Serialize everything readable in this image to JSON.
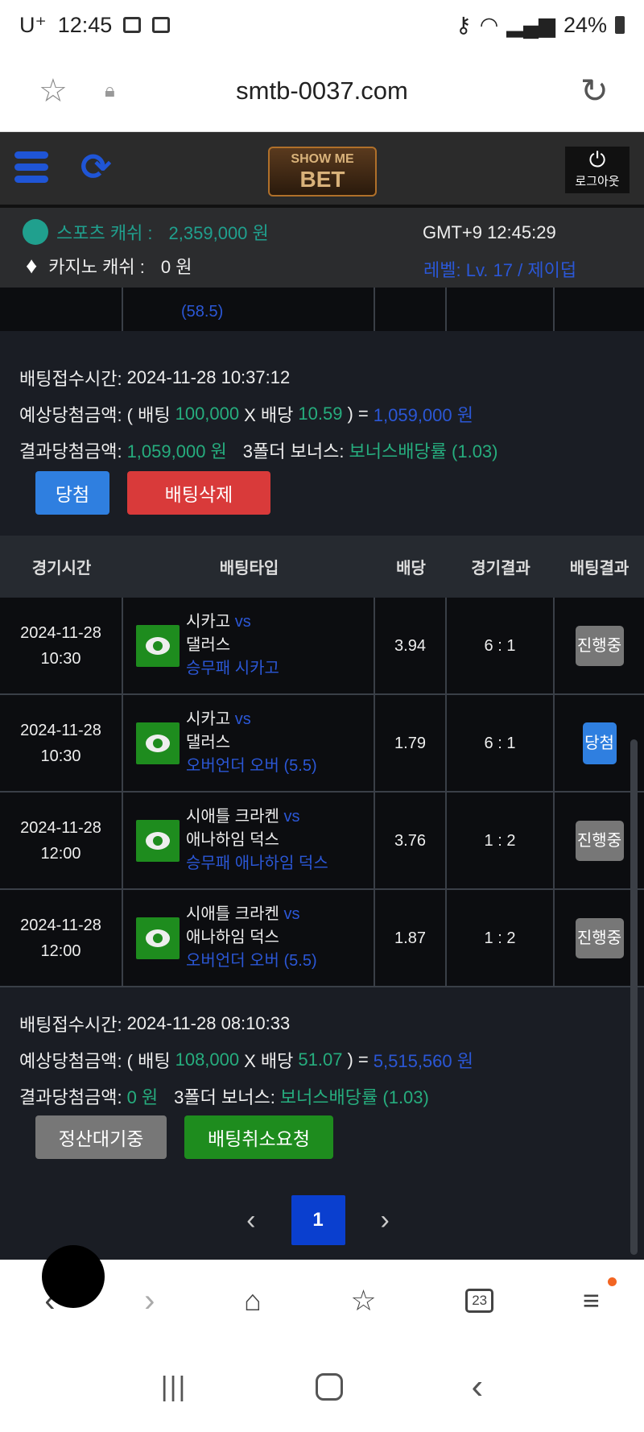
{
  "status_bar": {
    "carrier": "U⁺",
    "time": "12:45",
    "battery": "24%"
  },
  "browser": {
    "url": "smtb-0037.com"
  },
  "header": {
    "logo_text": "SHOW ME THE BET",
    "logout_label": "로그아웃"
  },
  "info": {
    "sports_label": "스포츠 캐쉬 :",
    "sports_value": "2,359,000 원",
    "casino_label": "카지노 캐쉬 :",
    "casino_value": "0 원",
    "clock": "GMT+9 12:45:29",
    "level": "레벨: Lv. 17 / 제이덥"
  },
  "partial_row": {
    "text": "(58.5)"
  },
  "bet1": {
    "time_label": "배팅접수시간:",
    "time": "2024-11-28 10:37:12",
    "exp_label": "예상당첨금액: ( 배팅",
    "stake": "100,000",
    "x_label": "X 배당",
    "odds": "10.59",
    "eq": ") =",
    "expected": "1,059,000 원",
    "res_label": "결과당첨금액:",
    "result": "1,059,000 원",
    "bonus_label": "3폴더 보너스:",
    "bonus": "보너스배당률 (1.03)",
    "status_btn": "당첨",
    "delete_btn": "배팅삭제"
  },
  "table": {
    "headers": [
      "경기시간",
      "배팅타입",
      "배당",
      "경기결과",
      "배팅결과"
    ],
    "rows": [
      {
        "date": "2024-11-28",
        "time": "10:30",
        "home": "시카고",
        "vs": "vs",
        "away": "댈러스",
        "pick": "승무패 시카고",
        "odds": "3.94",
        "score": "6 : 1",
        "result": "진행중",
        "result_color": "#777777"
      },
      {
        "date": "2024-11-28",
        "time": "10:30",
        "home": "시카고",
        "vs": "vs",
        "away": "댈러스",
        "pick": "오버언더 오버 (5.5)",
        "odds": "1.79",
        "score": "6 : 1",
        "result": "당첨",
        "result_color": "#2f7fe0"
      },
      {
        "date": "2024-11-28",
        "time": "12:00",
        "home": "시애틀 크라켄",
        "vs": "vs",
        "away": "애나하임 덕스",
        "pick": "승무패 애나하임 덕스",
        "odds": "3.76",
        "score": "1 : 2",
        "result": "진행중",
        "result_color": "#777777"
      },
      {
        "date": "2024-11-28",
        "time": "12:00",
        "home": "시애틀 크라켄",
        "vs": "vs",
        "away": "애나하임 덕스",
        "pick": "오버언더 오버 (5.5)",
        "odds": "1.87",
        "score": "1 : 2",
        "result": "진행중",
        "result_color": "#777777"
      }
    ]
  },
  "bet2": {
    "time_label": "배팅접수시간:",
    "time": "2024-11-28 08:10:33",
    "exp_label": "예상당첨금액: ( 배팅",
    "stake": "108,000",
    "x_label": "X 배당",
    "odds": "51.07",
    "eq": ") =",
    "expected": "5,515,560 원",
    "res_label": "결과당첨금액:",
    "result": "0 원",
    "bonus_label": "3폴더 보너스:",
    "bonus": "보너스배당률 (1.03)",
    "status_btn": "정산대기중",
    "cancel_btn": "배팅취소요청"
  },
  "pagination": {
    "prev": "‹",
    "current": "1",
    "next": "›"
  },
  "bottom_nav": {
    "tabs_count": "23"
  },
  "colors": {
    "teal": "#20a08e",
    "blue": "#2b57d6",
    "green_btn": "#1e8c1e",
    "red_btn": "#d93a3a",
    "blue_btn": "#2f7fe0",
    "gray_btn": "#777777"
  }
}
